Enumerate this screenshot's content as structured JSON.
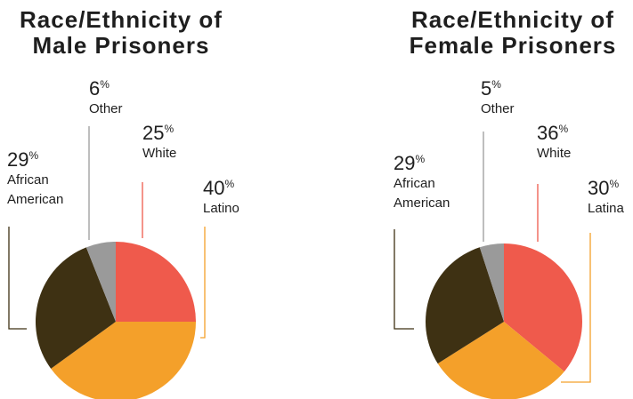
{
  "chart_data": [
    {
      "type": "pie",
      "title": "Race/Ethnicity of Male Prisoners",
      "categories": [
        "White",
        "Latino",
        "African American",
        "Other"
      ],
      "values": [
        25,
        40,
        29,
        6
      ],
      "unit": "%",
      "colors": [
        "#ef5a4c",
        "#f4a02a",
        "#3e3113",
        "#9a9a9a"
      ]
    },
    {
      "type": "pie",
      "title": "Race/Ethnicity of Female Prisoners",
      "categories": [
        "White",
        "Latina",
        "African American",
        "Other"
      ],
      "values": [
        36,
        30,
        29,
        5
      ],
      "unit": "%",
      "colors": [
        "#ef5a4c",
        "#f4a02a",
        "#3e3113",
        "#9a9a9a"
      ]
    }
  ]
}
